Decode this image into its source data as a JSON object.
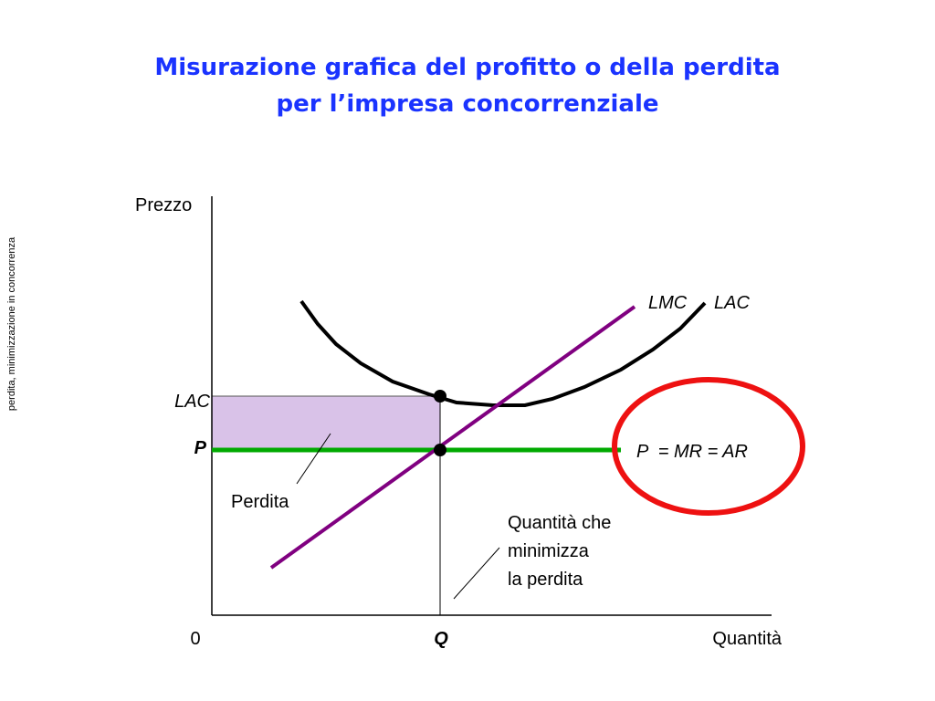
{
  "title": [
    "Misurazione grafica del profitto o della perdita",
    "per l’impresa concorrenziale"
  ],
  "side_note": "perdita, minimizzazione in concorrenza",
  "axes": {
    "y_label": "Prezzo",
    "x_label": "Quantità",
    "origin": "0",
    "q_label": "Q"
  },
  "curves": {
    "lmc": "LMC",
    "lac": "LAC"
  },
  "price_levels": {
    "lac": "LAC",
    "p": "P"
  },
  "demand_label": "P  = MR = AR",
  "annotations": {
    "loss": "Perdita",
    "quantity": [
      "Quantità che",
      "minimizza",
      "la perdita"
    ]
  }
}
